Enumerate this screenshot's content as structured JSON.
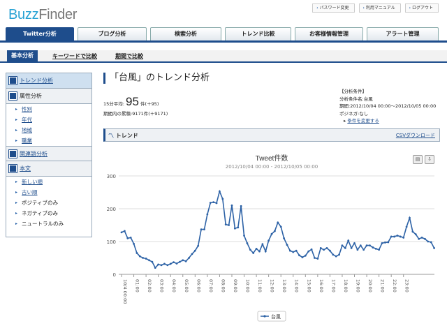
{
  "logo": {
    "part1": "Buzz",
    "part2": "Finder"
  },
  "toplinks": [
    "パスワード変更",
    "利用マニュアル",
    "ログアウト"
  ],
  "mainnav": [
    "Twitter分析",
    "ブログ分析",
    "検索分析",
    "トレンド比較",
    "お客様情報管理",
    "アラート管理"
  ],
  "subnav": [
    "基本分析",
    "キーワードで比較",
    "期間で比較"
  ],
  "sidebar": {
    "trend": "トレンド分析",
    "attr": "属性分析",
    "attr_items": [
      "性別",
      "年代",
      "地域",
      "職業"
    ],
    "related": "関連語分析",
    "text": "本文",
    "text_items": [
      "新しい順",
      "古い順",
      "ポジティブのみ",
      "ネガティブのみ",
      "ニュートラルのみ"
    ]
  },
  "heading": "「台風」のトレンド分析",
  "stats": {
    "avg_prefix": "15分平均:",
    "avg_value": "95",
    "avg_suffix": "件(＋95)",
    "total": "期間内の累積:9171件(＋9171)"
  },
  "conditions": {
    "title": "【分析条件】",
    "name": "分析条件名:台風",
    "period": "期間:2012/10/04 00:00〜2012/10/05 00:00",
    "posneg": "ポジネガ:なし",
    "change": "条件を変更する"
  },
  "trendbar": {
    "label": "トレンド",
    "csv": "CSVダウンロード"
  },
  "icons": {
    "print": "print-icon",
    "download": "download-icon"
  },
  "colors": {
    "brand": "#1e4d8c",
    "series": "#2d62a6"
  },
  "chart_data": {
    "type": "line",
    "title": "Tweet件数",
    "subtitle": "2012/10/04 00:00 - 2012/10/05 00:00",
    "ylim": [
      0,
      300
    ],
    "yticks": [
      0,
      100,
      200,
      300
    ],
    "xticks": [
      "10/4 00:00",
      "01:00",
      "02:00",
      "03:00",
      "04:00",
      "05:00",
      "06:00",
      "07:00",
      "08:00",
      "09:00",
      "10:00",
      "11:00",
      "12:00",
      "13:00",
      "14:00",
      "15:00",
      "16:00",
      "17:00",
      "18:00",
      "19:00",
      "20:00",
      "21:00",
      "22:00",
      "23:00"
    ],
    "series": [
      {
        "name": "台風",
        "values": [
          128,
          132,
          110,
          112,
          93,
          65,
          55,
          50,
          48,
          43,
          38,
          20,
          30,
          28,
          32,
          28,
          32,
          37,
          33,
          38,
          43,
          40,
          50,
          62,
          72,
          87,
          137,
          137,
          183,
          218,
          220,
          217,
          253,
          230,
          152,
          150,
          210,
          140,
          143,
          208,
          118,
          95,
          75,
          65,
          78,
          70,
          92,
          70,
          103,
          123,
          132,
          158,
          145,
          110,
          90,
          72,
          68,
          72,
          58,
          52,
          57,
          70,
          76,
          50,
          48,
          80,
          75,
          80,
          72,
          60,
          55,
          60,
          88,
          80,
          103,
          80,
          95,
          75,
          88,
          75,
          88,
          88,
          82,
          78,
          75,
          95,
          97,
          98,
          115,
          115,
          118,
          115,
          112,
          145,
          172,
          130,
          122,
          108,
          112,
          108,
          100,
          98,
          80
        ]
      }
    ]
  }
}
